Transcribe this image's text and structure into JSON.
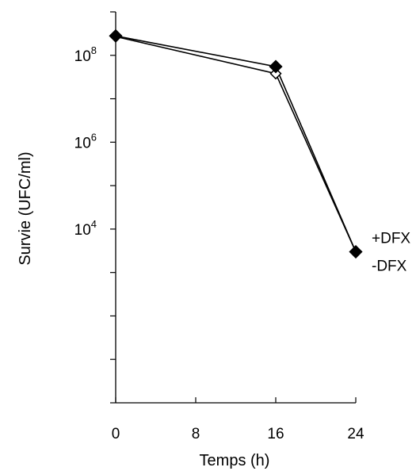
{
  "chart_data": {
    "type": "line",
    "xlabel": "Temps (h)",
    "ylabel": "Survie (UFC/ml)",
    "x": [
      0,
      16,
      24
    ],
    "x_ticks": [
      0,
      8,
      16,
      24
    ],
    "xlim": [
      0,
      24
    ],
    "y_scale": "log",
    "ylim": [
      1,
      1000000000
    ],
    "y_tick_labels": [
      {
        "value": 100000000,
        "base": "10",
        "exp": "8"
      },
      {
        "value": 1000000,
        "base": "10",
        "exp": "6"
      },
      {
        "value": 10000,
        "base": "10",
        "exp": "4"
      }
    ],
    "series": [
      {
        "name": "+DFX",
        "marker": "filled-diamond",
        "color": "#000000",
        "values": [
          280000000,
          55000000,
          3000
        ]
      },
      {
        "name": "-DFX",
        "marker": "open-diamond",
        "color": "#000000",
        "values": [
          270000000,
          38000000,
          3000
        ]
      }
    ],
    "grid": false,
    "legend_placement": "right, at end of lines"
  }
}
